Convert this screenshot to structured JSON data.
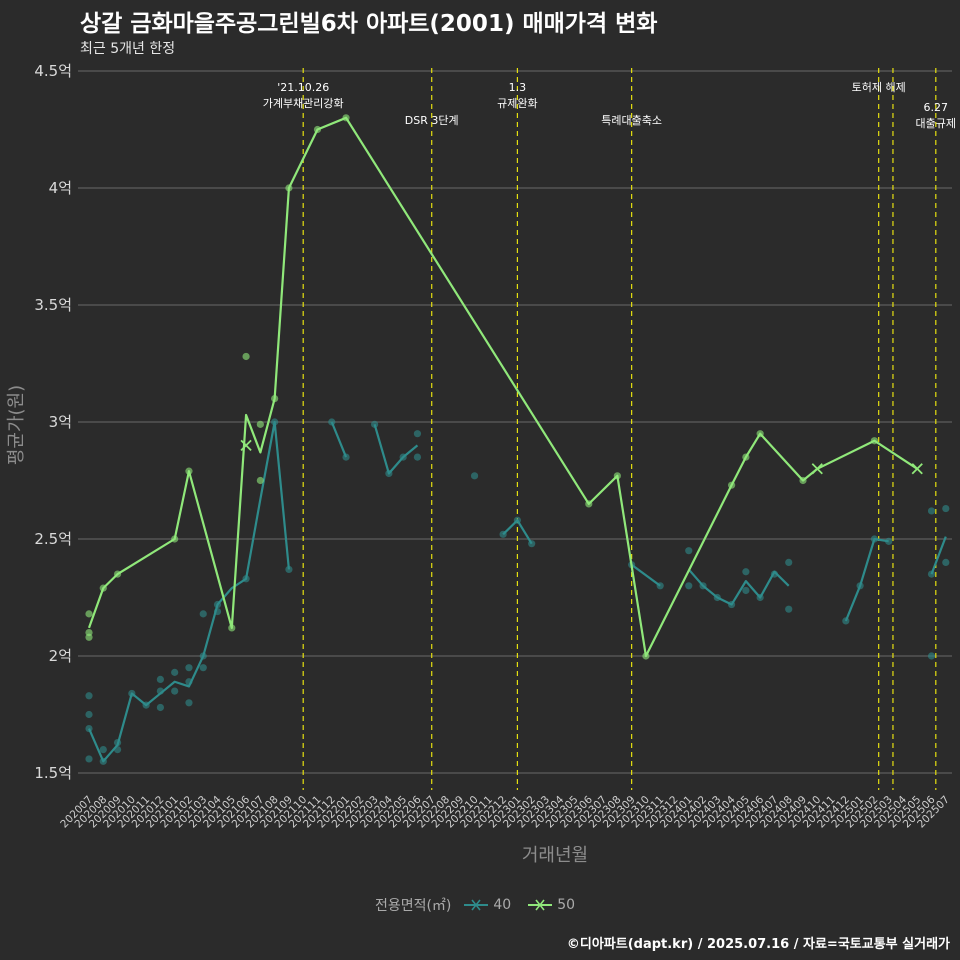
{
  "title": "상갈 금화마을주공그린빌6차 아파트(2001) 매매가격 변화",
  "subtitle": "최근 5개년 한정",
  "caption": "©디아파트(dapt.kr) / 2025.07.16 / 자료=국토교통부 실거래가",
  "colors": {
    "background": "#2b2b2b",
    "grid": "#555555",
    "series_40": "#2e8b8b",
    "series_50": "#90e87a",
    "event_line": "#e5e010",
    "text": "#e0e0e0",
    "axis_title": "#8c8c8c"
  },
  "chart_data": {
    "type": "line",
    "xlabel": "거래년월",
    "ylabel": "평균가(원)",
    "ylim": [
      1.45,
      4.5
    ],
    "y_ticks": [
      1.5,
      2,
      2.5,
      3,
      3.5,
      4,
      4.5
    ],
    "y_tick_labels": [
      "1.5억",
      "2억",
      "2.5억",
      "3억",
      "3.5억",
      "4억",
      "4.5억"
    ],
    "categories": [
      "202007",
      "202008",
      "202009",
      "202010",
      "202011",
      "202012",
      "202101",
      "202102",
      "202103",
      "202104",
      "202105",
      "202106",
      "202107",
      "202108",
      "202109",
      "202110",
      "202111",
      "202112",
      "202201",
      "202202",
      "202203",
      "202204",
      "202205",
      "202206",
      "202207",
      "202208",
      "202209",
      "202210",
      "202211",
      "202212",
      "202301",
      "202302",
      "202303",
      "202304",
      "202305",
      "202306",
      "202307",
      "202308",
      "202309",
      "202310",
      "202311",
      "202312",
      "202401",
      "202402",
      "202403",
      "202404",
      "202405",
      "202406",
      "202407",
      "202408",
      "202409",
      "202410",
      "202411",
      "202412",
      "202501",
      "202502",
      "202503",
      "202504",
      "202505",
      "202506",
      "202507"
    ],
    "legend_title": "전용면적(㎡)",
    "series": [
      {
        "name": "40",
        "line": [
          [
            0,
            1.69
          ],
          [
            1,
            1.55
          ],
          [
            2,
            1.62
          ],
          [
            3,
            1.84
          ],
          [
            4,
            1.79
          ],
          [
            5,
            1.84
          ],
          [
            6,
            1.89
          ],
          [
            7,
            1.87
          ],
          [
            8,
            2.0
          ],
          [
            9,
            2.22
          ],
          [
            10,
            2.29
          ],
          [
            11,
            2.33
          ],
          [
            12,
            2.67
          ],
          [
            13,
            3.0
          ],
          [
            14,
            2.37
          ],
          null,
          [
            17,
            3.0
          ],
          [
            18,
            2.85
          ],
          null,
          [
            20,
            2.99
          ],
          [
            21,
            2.78
          ],
          [
            22,
            2.85
          ],
          [
            23,
            2.9
          ],
          null,
          [
            29,
            2.52
          ],
          [
            30,
            2.58
          ],
          [
            31,
            2.48
          ],
          null,
          [
            38,
            2.39
          ],
          [
            40,
            2.3
          ],
          null,
          [
            42,
            2.37
          ],
          [
            43,
            2.3
          ],
          [
            44,
            2.25
          ],
          [
            45,
            2.22
          ],
          [
            46,
            2.32
          ],
          [
            47,
            2.25
          ],
          [
            48,
            2.36
          ],
          [
            49,
            2.3
          ],
          null,
          [
            53,
            2.15
          ],
          [
            54,
            2.3
          ],
          [
            55,
            2.5
          ],
          [
            56,
            2.49
          ],
          null,
          [
            59,
            2.35
          ],
          [
            60,
            2.51
          ]
        ],
        "points": [
          [
            0,
            1.83
          ],
          [
            0,
            1.75
          ],
          [
            0,
            1.69
          ],
          [
            0,
            1.56
          ],
          [
            1,
            1.55
          ],
          [
            1,
            1.6
          ],
          [
            2,
            1.6
          ],
          [
            2,
            1.63
          ],
          [
            3,
            1.84
          ],
          [
            4,
            1.79
          ],
          [
            5,
            1.78
          ],
          [
            5,
            1.85
          ],
          [
            5,
            1.9
          ],
          [
            6,
            1.85
          ],
          [
            6,
            1.93
          ],
          [
            7,
            1.8
          ],
          [
            7,
            1.89
          ],
          [
            7,
            1.95
          ],
          [
            8,
            1.95
          ],
          [
            8,
            2.0
          ],
          [
            8,
            2.18
          ],
          [
            9,
            2.22
          ],
          [
            9,
            2.19
          ],
          [
            11,
            2.33
          ],
          [
            13,
            3.0
          ],
          [
            14,
            2.37
          ],
          [
            17,
            3.0
          ],
          [
            18,
            2.85
          ],
          [
            20,
            2.99
          ],
          [
            21,
            2.78
          ],
          [
            22,
            2.85
          ],
          [
            23,
            2.85
          ],
          [
            23,
            2.95
          ],
          [
            27,
            2.77
          ],
          [
            29,
            2.52
          ],
          [
            30,
            2.58
          ],
          [
            31,
            2.48
          ],
          [
            38,
            2.39
          ],
          [
            40,
            2.3
          ],
          [
            42,
            2.45
          ],
          [
            42,
            2.3
          ],
          [
            43,
            2.3
          ],
          [
            44,
            2.25
          ],
          [
            45,
            2.22
          ],
          [
            46,
            2.36
          ],
          [
            46,
            2.28
          ],
          [
            47,
            2.25
          ],
          [
            48,
            2.35
          ],
          [
            49,
            2.4
          ],
          [
            49,
            2.2
          ],
          [
            53,
            2.15
          ],
          [
            54,
            2.3
          ],
          [
            55,
            2.5
          ],
          [
            56,
            2.49
          ],
          [
            59,
            2.62
          ],
          [
            59,
            2.35
          ],
          [
            59,
            2.0
          ],
          [
            60,
            2.63
          ],
          [
            60,
            2.4
          ]
        ],
        "markers": []
      },
      {
        "name": "50",
        "line": [
          [
            0,
            2.12
          ],
          [
            1,
            2.29
          ],
          [
            2,
            2.35
          ],
          [
            6,
            2.5
          ],
          [
            7,
            2.79
          ],
          [
            10,
            2.12
          ],
          [
            11,
            3.03
          ],
          [
            12,
            2.87
          ],
          [
            13,
            3.1
          ],
          [
            14,
            4.0
          ],
          [
            16,
            4.25
          ],
          [
            18,
            4.3
          ],
          [
            35,
            2.65
          ],
          [
            37,
            2.77
          ],
          [
            39,
            2.0
          ],
          [
            45,
            2.73
          ],
          [
            46,
            2.85
          ],
          [
            47,
            2.95
          ],
          [
            50,
            2.75
          ],
          [
            51,
            2.8
          ],
          [
            55,
            2.92
          ],
          [
            58,
            2.8
          ]
        ],
        "points": [
          [
            0,
            2.18
          ],
          [
            0,
            2.1
          ],
          [
            0,
            2.08
          ],
          [
            1,
            2.29
          ],
          [
            2,
            2.35
          ],
          [
            6,
            2.5
          ],
          [
            7,
            2.79
          ],
          [
            10,
            2.12
          ],
          [
            11,
            3.28
          ],
          [
            12,
            2.99
          ],
          [
            12,
            2.75
          ],
          [
            13,
            3.1
          ],
          [
            14,
            4.0
          ],
          [
            16,
            4.25
          ],
          [
            18,
            4.3
          ],
          [
            35,
            2.65
          ],
          [
            37,
            2.77
          ],
          [
            39,
            2.0
          ],
          [
            45,
            2.73
          ],
          [
            46,
            2.85
          ],
          [
            47,
            2.95
          ],
          [
            50,
            2.75
          ],
          [
            55,
            2.92
          ]
        ],
        "markers": [
          [
            11,
            2.9
          ],
          [
            51,
            2.8
          ],
          [
            58,
            2.8
          ]
        ]
      }
    ],
    "events": [
      {
        "x": 15,
        "lines": [
          "'21.10.26",
          "가계부채관리강화"
        ],
        "row": 0
      },
      {
        "x": 24,
        "lines": [
          "DSR 3단계"
        ],
        "row": 1
      },
      {
        "x": 30,
        "lines": [
          "1.3",
          "규제완화"
        ],
        "row": 0
      },
      {
        "x": 38,
        "lines": [
          "특례대출축소"
        ],
        "row": 1
      },
      {
        "x": 55.3,
        "lines": [
          "토허제 해제"
        ],
        "row": 0
      },
      {
        "x": 56.3,
        "lines": [],
        "row": 0
      },
      {
        "x": 59.3,
        "lines": [
          "6.27",
          "대출규제"
        ],
        "row": 2
      }
    ]
  }
}
